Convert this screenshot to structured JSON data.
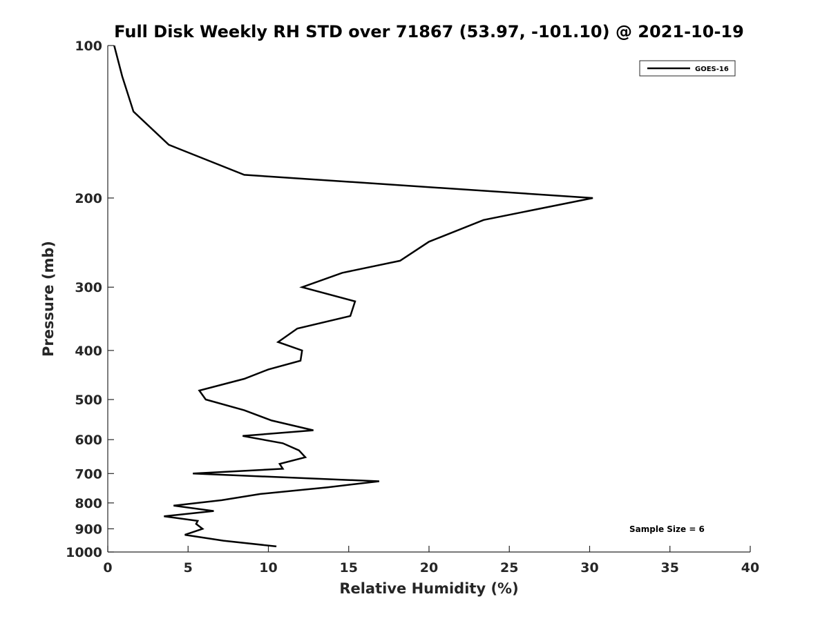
{
  "chart_data": {
    "type": "line",
    "title": "Full Disk Weekly RH STD over 71867 (53.97, -101.10) @ 2021-10-19",
    "xlabel": "Relative Humidity (%)",
    "ylabel": "Pressure (mb)",
    "xlim": [
      0,
      40
    ],
    "ylim": [
      100,
      1000
    ],
    "y_scale": "log",
    "y_reversed": true,
    "xticks": [
      0,
      5,
      10,
      15,
      20,
      25,
      30,
      35,
      40
    ],
    "yticks": [
      100,
      200,
      300,
      400,
      500,
      600,
      700,
      800,
      900,
      1000
    ],
    "grid": false,
    "legend": {
      "position": "top-right",
      "entries": [
        "GOES-16"
      ]
    },
    "annotation": "Sample Size = 6",
    "series": [
      {
        "name": "GOES-16",
        "color": "#000000",
        "x": [
          0.4,
          0.9,
          1.6,
          3.8,
          8.5,
          30.2,
          23.4,
          20.0,
          18.2,
          14.6,
          12.1,
          15.4,
          15.1,
          11.8,
          10.6,
          12.1,
          12.0,
          10.0,
          8.5,
          5.7,
          6.1,
          8.5,
          10.2,
          12.8,
          8.4,
          10.9,
          11.9,
          12.3,
          10.7,
          10.9,
          5.3,
          16.9,
          13.7,
          9.5,
          7.1,
          4.1,
          6.6,
          3.5,
          5.6,
          5.5,
          5.9,
          4.8,
          7.2,
          10.5
        ],
        "y": [
          100,
          115,
          135,
          157,
          180,
          200,
          221,
          244,
          266,
          281,
          300,
          320,
          342,
          362,
          385,
          400,
          419,
          436,
          455,
          480,
          500,
          525,
          550,
          575,
          590,
          610,
          630,
          650,
          670,
          685,
          700,
          725,
          745,
          768,
          790,
          810,
          830,
          850,
          868,
          880,
          900,
          925,
          950,
          975
        ]
      }
    ]
  }
}
